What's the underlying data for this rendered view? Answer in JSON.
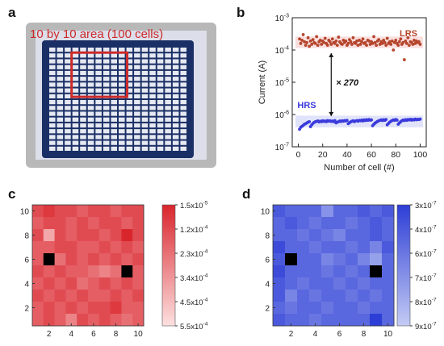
{
  "panels": {
    "a": "a",
    "b": "b",
    "c": "c",
    "d": "d"
  },
  "photo": {
    "overlay_label": "10 by 10 area (100 cells)",
    "grid_size": 18,
    "highlight_cells": 10,
    "colors": {
      "substrate": "#b8b8b8",
      "grid": "#1a2f66",
      "highlight": "#cc2a2a"
    }
  },
  "chart_data": [
    {
      "type": "scatter",
      "panel": "b",
      "xlabel": "Number of cell (#)",
      "ylabel": "Current (A)",
      "yscale": "log",
      "xlim": [
        -5,
        105
      ],
      "ylim": [
        1e-07,
        0.001
      ],
      "x_ticks": [
        "0",
        "20",
        "40",
        "60",
        "80",
        "100"
      ],
      "y_ticks": [
        {
          "base": "10",
          "exp": "-7"
        },
        {
          "base": "10",
          "exp": "-6"
        },
        {
          "base": "10",
          "exp": "-5"
        },
        {
          "base": "10",
          "exp": "-4"
        },
        {
          "base": "10",
          "exp": "-3"
        }
      ],
      "annotation": "× 270",
      "series": [
        {
          "name": "LRS",
          "color": "#b5452c",
          "x_start": 1,
          "values": [
            0.00022,
            0.00016,
            0.0002,
            0.0003,
            0.00018,
            0.00014,
            0.00017,
            0.00024,
            0.00013,
            0.00019,
            0.00015,
            0.00021,
            0.00017,
            0.00016,
            0.00026,
            0.00014,
            0.00018,
            0.0002,
            0.00015,
            0.00019,
            0.00017,
            0.00023,
            0.00016,
            0.00014,
            0.0002,
            0.00018,
            0.00015,
            0.00022,
            0.00017,
            0.00016,
            0.00019,
            0.00014,
            0.00025,
            0.00018,
            0.00016,
            0.00015,
            0.0002,
            0.00017,
            0.00019,
            0.00014,
            0.00016,
            0.00021,
            0.00018,
            0.00015,
            0.00024,
            0.00017,
            0.00016,
            0.00019,
            0.00014,
            0.0002,
            0.00015,
            0.00018,
            0.00022,
            0.00016,
            0.00017,
            0.00014,
            0.0002,
            0.00019,
            0.00015,
            0.00018,
            0.00016,
            0.00026,
            0.00017,
            0.00014,
            0.00019,
            0.00021,
            0.00015,
            0.00018,
            0.00016,
            0.0002,
            0.00017,
            0.00014,
            0.00023,
            0.00016,
            0.00018,
            0.00015,
            0.00019,
            0.0001,
            0.00017,
            0.0002,
            0.00016,
            0.00014,
            0.00018,
            0.00022,
            0.00015,
            0.00017,
            5e-05,
            0.00019,
            0.00016,
            0.00024,
            0.00014,
            0.00018,
            0.00017,
            0.00015,
            0.0002,
            0.00016,
            0.00019,
            0.00017,
            0.00018,
            0.00015
          ]
        },
        {
          "name": "HRS",
          "color": "#3a3adc",
          "x_start": 1,
          "values": [
            3.5e-07,
            4e-07,
            4.3e-07,
            4.6e-07,
            5e-07,
            5.2e-07,
            5.5e-07,
            5.8e-07,
            6e-07,
            4.2e-07,
            4.8e-07,
            5.3e-07,
            5.7e-07,
            6e-07,
            6.1e-07,
            6.3e-07,
            5.9e-07,
            6.2e-07,
            6e-07,
            6.4e-07,
            6.1e-07,
            6.3e-07,
            6e-07,
            6.5e-07,
            6.2e-07,
            6.4e-07,
            6.1e-07,
            6.3e-07,
            6e-07,
            6.5e-07,
            5.5e-07,
            5.8e-07,
            6e-07,
            6.3e-07,
            6.1e-07,
            6.4e-07,
            6.2e-07,
            6.5e-07,
            6.3e-07,
            6.6e-07,
            5.2e-07,
            5.6e-07,
            5.9e-07,
            6.2e-07,
            6.4e-07,
            6e-07,
            6.3e-07,
            6.5e-07,
            6.2e-07,
            6.6e-07,
            6.4e-07,
            6.7e-07,
            6.3e-07,
            6.8e-07,
            6.5e-07,
            6.9e-07,
            6.6e-07,
            7e-07,
            6.7e-07,
            6.8e-07,
            4.5e-07,
            5e-07,
            5.4e-07,
            5.8e-07,
            6.1e-07,
            6.4e-07,
            6.6e-07,
            6.8e-07,
            6.5e-07,
            6.9e-07,
            6.6e-07,
            7e-07,
            4.8e-07,
            5.3e-07,
            5.8e-07,
            6.2e-07,
            6.5e-07,
            6.8e-07,
            6.6e-07,
            7e-07,
            6.7e-07,
            5e-07,
            5.5e-07,
            6e-07,
            6.4e-07,
            6.7e-07,
            6.5e-07,
            6.9e-07,
            6.6e-07,
            7e-07,
            6.8e-07,
            7.1e-07,
            6.7e-07,
            7e-07,
            6.8e-07,
            7.2e-07,
            6.9e-07,
            7.1e-07,
            7e-07,
            7.2e-07
          ]
        }
      ]
    },
    {
      "type": "heatmap",
      "panel": "c",
      "x_ticks": [
        "2",
        "4",
        "6",
        "8",
        "10"
      ],
      "y_ticks": [
        "2",
        "4",
        "6",
        "8",
        "10"
      ],
      "colorbar_ticks": [
        {
          "base": "1.5x10",
          "exp": "-5"
        },
        {
          "base": "1.2x10",
          "exp": "-4"
        },
        {
          "base": "2.3x10",
          "exp": "-4"
        },
        {
          "base": "3.4x10",
          "exp": "-4"
        },
        {
          "base": "4.5x10",
          "exp": "-4"
        },
        {
          "base": "5.5x10",
          "exp": "-4"
        }
      ],
      "color_range": [
        "#d9262d",
        "#fde0e0"
      ],
      "missing_color": "#000000",
      "rows_top_to_bottom": [
        [
          0.2,
          0.1,
          0.2,
          0.2,
          0.3,
          0.2,
          0.2,
          0.3,
          0.2,
          0.2
        ],
        [
          0.3,
          0.2,
          0.2,
          0.3,
          0.2,
          0.3,
          0.2,
          0.2,
          0.3,
          0.2
        ],
        [
          0.2,
          0.7,
          0.2,
          0.3,
          0.2,
          0.2,
          0.3,
          0.2,
          0.0,
          0.2
        ],
        [
          0.3,
          0.3,
          0.2,
          0.2,
          0.3,
          0.3,
          0.2,
          0.3,
          0.2,
          0.3
        ],
        [
          0.3,
          null,
          0.4,
          0.2,
          0.3,
          0.2,
          0.3,
          0.2,
          0.3,
          0.2
        ],
        [
          0.2,
          0.3,
          0.2,
          0.3,
          0.3,
          0.4,
          0.5,
          0.4,
          null,
          0.3
        ],
        [
          0.3,
          0.2,
          0.3,
          0.2,
          0.4,
          0.3,
          0.2,
          0.3,
          0.2,
          0.3
        ],
        [
          0.2,
          0.3,
          0.2,
          0.3,
          0.2,
          0.3,
          0.3,
          0.2,
          0.3,
          0.2
        ],
        [
          0.3,
          0.2,
          0.3,
          0.2,
          0.3,
          0.2,
          0.2,
          0.1,
          0.3,
          0.3
        ],
        [
          0.3,
          0.2,
          0.3,
          0.5,
          0.2,
          0.3,
          0.2,
          0.3,
          0.4,
          0.3
        ]
      ]
    },
    {
      "type": "heatmap",
      "panel": "d",
      "x_ticks": [
        "2",
        "4",
        "6",
        "8",
        "10"
      ],
      "y_ticks": [
        "2",
        "4",
        "6",
        "8",
        "10"
      ],
      "colorbar_ticks": [
        {
          "base": "3x10",
          "exp": "-7"
        },
        {
          "base": "4x10",
          "exp": "-7"
        },
        {
          "base": "6x10",
          "exp": "-7"
        },
        {
          "base": "7x10",
          "exp": "-7"
        },
        {
          "base": "8x10",
          "exp": "-7"
        },
        {
          "base": "9x10",
          "exp": "-7"
        }
      ],
      "color_range": [
        "#2d3ed6",
        "#c3cbf4"
      ],
      "missing_color": "#000000",
      "rows_top_to_bottom": [
        [
          0.2,
          0.3,
          0.3,
          0.3,
          0.6,
          0.3,
          0.3,
          0.2,
          0.3,
          0.2
        ],
        [
          0.3,
          0.2,
          0.3,
          0.4,
          0.3,
          0.3,
          0.4,
          0.3,
          0.2,
          0.3
        ],
        [
          0.3,
          0.3,
          0.4,
          0.3,
          0.4,
          0.5,
          0.3,
          0.3,
          0.2,
          0.3
        ],
        [
          0.1,
          0.3,
          0.3,
          0.4,
          0.3,
          0.3,
          0.4,
          0.3,
          0.5,
          0.2
        ],
        [
          0.2,
          null,
          0.3,
          0.3,
          0.5,
          0.4,
          0.3,
          0.5,
          0.7,
          0.3
        ],
        [
          0.1,
          0.3,
          0.3,
          0.3,
          0.4,
          0.3,
          0.4,
          0.3,
          null,
          0.3
        ],
        [
          0.2,
          0.3,
          0.4,
          0.3,
          0.3,
          0.4,
          0.3,
          0.4,
          0.3,
          0.3
        ],
        [
          0.2,
          0.5,
          0.3,
          0.4,
          0.3,
          0.3,
          0.4,
          0.3,
          0.4,
          0.3
        ],
        [
          0.3,
          0.4,
          0.3,
          0.3,
          0.4,
          0.3,
          0.3,
          0.4,
          0.3,
          0.3
        ],
        [
          0.2,
          0.3,
          0.3,
          0.4,
          0.3,
          0.3,
          0.3,
          0.3,
          0.0,
          0.3
        ]
      ]
    }
  ]
}
